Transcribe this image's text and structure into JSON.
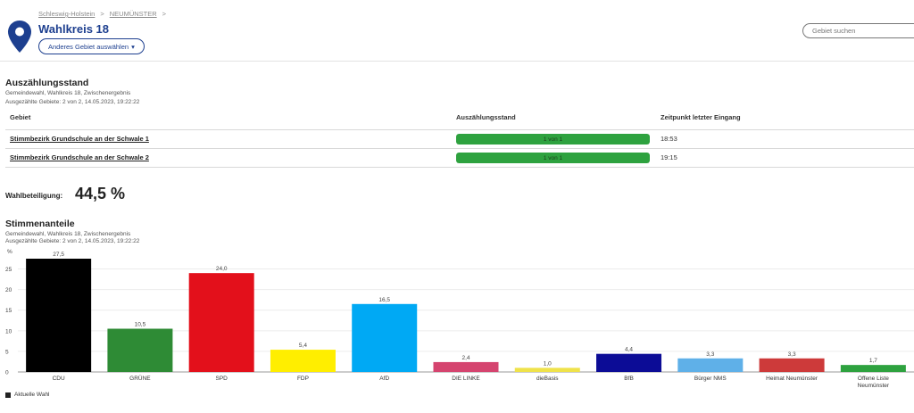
{
  "breadcrumb": {
    "items": [
      "Schleswig-Holstein",
      "NEUMÜNSTER"
    ],
    "separator": ">"
  },
  "header": {
    "title": "Wahlkreis 18",
    "change_area_label": "Anderes Gebiet auswählen",
    "change_area_icon": "caret-down-icon",
    "location_icon": "map-pin-icon",
    "accent_color": "#1d3f8f"
  },
  "search": {
    "placeholder": "Gebiet suchen"
  },
  "count_status": {
    "title": "Auszählungsstand",
    "subtitle": "Gemeindewahl, Wahlkreis 18, Zwischenergebnis",
    "counted": "Ausgezählte Gebiete: 2 von 2, 14.05.2023, 19:22:22",
    "columns": [
      "Gebiet",
      "Auszählungsstand",
      "Zeitpunkt letzter Eingang"
    ],
    "rows": [
      {
        "area": "Stimmbezirk Grundschule an der Schwale 1",
        "progress_label": "1 von 1",
        "progress": 1.0,
        "time": "18:53"
      },
      {
        "area": "Stimmbezirk Grundschule an der Schwale 2",
        "progress_label": "1 von 1",
        "progress": 1.0,
        "time": "19:15"
      }
    ],
    "progress_color": "#2ea23f"
  },
  "turnout": {
    "label": "Wahlbeteiligung:",
    "value": "44,5 %"
  },
  "vote_share": {
    "title": "Stimmenanteile",
    "subtitle": "Gemeindewahl, Wahlkreis 18, Zwischenergebnis",
    "counted": "Ausgezählte Gebiete: 2 von 2, 14.05.2023, 19:22:22",
    "legend": "Aktuelle Wahl"
  },
  "chart_data": {
    "type": "bar",
    "ylabel": "%",
    "ylim": [
      0,
      27.5
    ],
    "yticks": [
      0,
      5,
      10,
      15,
      20,
      25
    ],
    "grid": true,
    "categories": [
      "CDU",
      "GRÜNE",
      "SPD",
      "FDP",
      "AfD",
      "DIE LINKE",
      "dieBasis",
      "BfB",
      "Bürger NMS",
      "Heimat Neumünster",
      "Offene Liste Neumünster"
    ],
    "values": [
      27.5,
      10.5,
      24.0,
      5.4,
      16.5,
      2.4,
      1.0,
      4.4,
      3.3,
      3.3,
      1.7
    ],
    "value_labels": [
      "27,5",
      "10,5",
      "24,0",
      "5,4",
      "16,5",
      "2,4",
      "1,0",
      "4,4",
      "3,3",
      "3,3",
      "1,7"
    ],
    "category_labels": [
      [
        "CDU"
      ],
      [
        "GRÜNE"
      ],
      [
        "SPD"
      ],
      [
        "FDP"
      ],
      [
        "AfD"
      ],
      [
        "DIE LINKE"
      ],
      [
        "dieBasis"
      ],
      [
        "BfB"
      ],
      [
        "Bürger NMS"
      ],
      [
        "Heimat Neumünster"
      ],
      [
        "Offene Liste",
        "Neumünster"
      ]
    ],
    "colors": [
      "#000000",
      "#2e8b35",
      "#e3101b",
      "#ffee00",
      "#00a9f4",
      "#d5446f",
      "#efe24a",
      "#0c0c96",
      "#5fb0e8",
      "#cd3a3a",
      "#2ea23f"
    ],
    "legend": [
      "Aktuelle Wahl"
    ],
    "legend_position": "bottom-left"
  }
}
